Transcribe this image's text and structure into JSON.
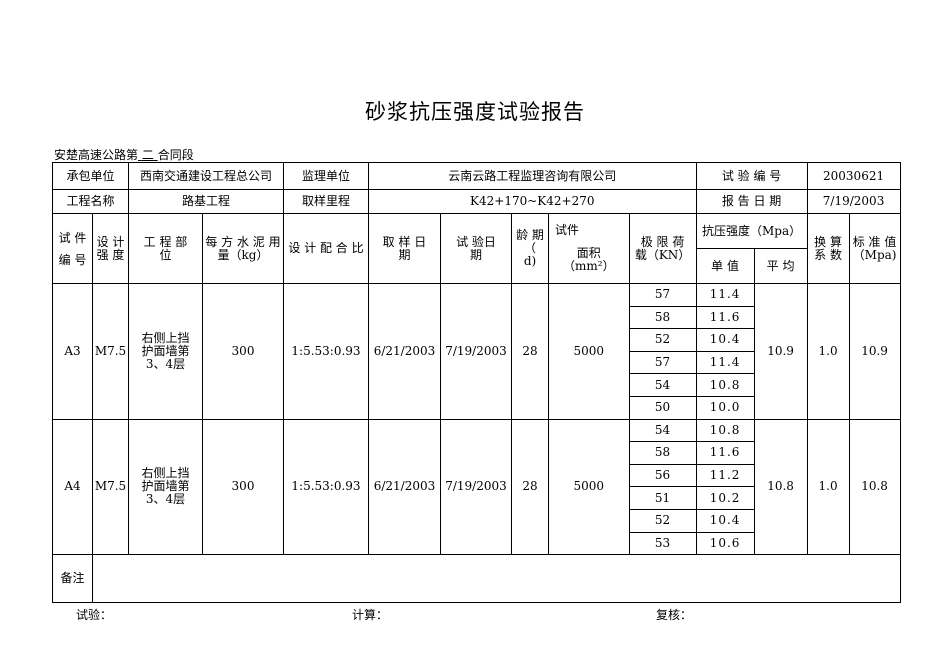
{
  "title": "砂浆抗压强度试验报告",
  "section": {
    "prefix": "安楚高速公路第",
    "number": "二",
    "suffix": "合同段"
  },
  "info": {
    "contractor_label": "承包单位",
    "contractor": "西南交通建设工程总公司",
    "supervisor_label": "监理单位",
    "supervisor": "云南云路工程监理咨询有限公司",
    "test_no_label": "试 验 编 号",
    "test_no": "20030621",
    "project_label": "工程名称",
    "project": "路基工程",
    "mileage_label": "取样里程",
    "mileage": "K42+170~K42+270",
    "report_date_label": "报 告 日 期",
    "report_date": "7/19/2003"
  },
  "headers": {
    "specimen_no": "试 件 编 号",
    "design_strength": "设 计 强 度",
    "location": "工 程 部 位",
    "cement": "每 方 水 泥 用 量（kg）",
    "mix": "设 计 配 合 比",
    "sample_date": "取 样 日 期",
    "test_date": "试 验日 期",
    "age": "龄 期（ d)",
    "area_top": "试件",
    "area": "面积 （mm²）",
    "load": "极 限 荷 载（KN）",
    "strength": "抗压强度（Mpa）",
    "single": "单 值",
    "avg": "平 均",
    "factor": "换 算 系 数",
    "std": "标 准 值 （Mpa)"
  },
  "rows": [
    {
      "id": "A3",
      "grade": "M7.5",
      "location": "右侧上挡护面墙第3、4层",
      "cement": "300",
      "mix": "1:5.53:0.93",
      "sample_date": "6/21/2003",
      "test_date": "7/19/2003",
      "age": "28",
      "area": "5000",
      "loads": [
        "57",
        "58",
        "52",
        "57",
        "54",
        "50"
      ],
      "singles": [
        "11.4",
        "11.6",
        "10.4",
        "11.4",
        "10.8",
        "10.0"
      ],
      "avg": "10.9",
      "factor": "1.0",
      "std": "10.9"
    },
    {
      "id": "A4",
      "grade": "M7.5",
      "location": "右侧上挡护面墙第3、4层",
      "cement": "300",
      "mix": "1:5.53:0.93",
      "sample_date": "6/21/2003",
      "test_date": "7/19/2003",
      "age": "28",
      "area": "5000",
      "loads": [
        "54",
        "58",
        "56",
        "51",
        "52",
        "53"
      ],
      "singles": [
        "10.8",
        "11.6",
        "11.2",
        "10.2",
        "10.4",
        "10.6"
      ],
      "avg": "10.8",
      "factor": "1.0",
      "std": "10.8"
    }
  ],
  "remark_label": "备注",
  "footer": {
    "test": "试验：",
    "calc": "计算：",
    "review": "复核："
  }
}
